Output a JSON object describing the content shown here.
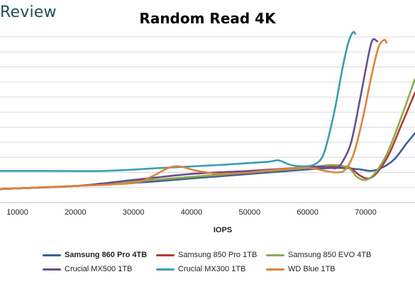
{
  "brand": "Review",
  "chart_data": {
    "type": "line",
    "title": "Random Read 4K",
    "xlabel": "IOPS",
    "ylabel": "",
    "x_ticks": [
      "10000",
      "20000",
      "30000",
      "40000",
      "50000",
      "60000",
      "70000"
    ],
    "xlim": [
      7000,
      78500
    ],
    "ylim": [
      0,
      11
    ],
    "grid": true,
    "legend_position": "bottom",
    "series": [
      {
        "name": "Samsung 860 Pro 4TB",
        "color": "#3a5fa0",
        "bold": true,
        "points": [
          [
            7000,
            0.9
          ],
          [
            20000,
            1.1
          ],
          [
            30000,
            1.3
          ],
          [
            40000,
            1.6
          ],
          [
            50000,
            1.9
          ],
          [
            60000,
            2.2
          ],
          [
            65000,
            2.3
          ],
          [
            69000,
            2.2
          ],
          [
            71000,
            2.1
          ],
          [
            73000,
            2.35
          ],
          [
            75000,
            2.9
          ],
          [
            77000,
            3.9
          ],
          [
            78500,
            4.6
          ]
        ]
      },
      {
        "name": "Samsung 850 Pro 1TB",
        "color": "#b23b35",
        "bold": false,
        "points": [
          [
            7000,
            0.9
          ],
          [
            20000,
            1.1
          ],
          [
            30000,
            1.4
          ],
          [
            40000,
            1.7
          ],
          [
            50000,
            2.0
          ],
          [
            60000,
            2.3
          ],
          [
            64000,
            2.4
          ],
          [
            67000,
            2.35
          ],
          [
            69000,
            1.8
          ],
          [
            70500,
            1.6
          ],
          [
            72000,
            2.0
          ],
          [
            74000,
            3.2
          ],
          [
            76000,
            5.0
          ],
          [
            78500,
            7.3
          ]
        ]
      },
      {
        "name": "Samsung 850 EVO 4TB",
        "color": "#8aad4c",
        "bold": false,
        "points": [
          [
            7000,
            0.9
          ],
          [
            20000,
            1.1
          ],
          [
            30000,
            1.4
          ],
          [
            40000,
            1.7
          ],
          [
            50000,
            2.0
          ],
          [
            60000,
            2.3
          ],
          [
            64000,
            2.5
          ],
          [
            67000,
            2.3
          ],
          [
            68500,
            1.7
          ],
          [
            70000,
            1.5
          ],
          [
            71500,
            1.9
          ],
          [
            73500,
            3.1
          ],
          [
            75500,
            5.0
          ],
          [
            78500,
            8.2
          ]
        ]
      },
      {
        "name": "Crucial MX500 1TB",
        "color": "#6b4e8f",
        "bold": false,
        "points": [
          [
            7000,
            0.9
          ],
          [
            20000,
            1.1
          ],
          [
            30000,
            1.5
          ],
          [
            40000,
            1.9
          ],
          [
            50000,
            2.1
          ],
          [
            58000,
            2.3
          ],
          [
            62000,
            2.4
          ],
          [
            64000,
            2.3
          ],
          [
            65000,
            2.3
          ],
          [
            66000,
            2.7
          ],
          [
            67500,
            4.0
          ],
          [
            69000,
            6.8
          ],
          [
            70500,
            9.8
          ],
          [
            71200,
            10.8
          ],
          [
            72000,
            10.7
          ]
        ]
      },
      {
        "name": "Crucial MX300 1TB",
        "color": "#3c9db3",
        "bold": false,
        "points": [
          [
            7000,
            2.1
          ],
          [
            15000,
            2.1
          ],
          [
            25000,
            2.1
          ],
          [
            35000,
            2.3
          ],
          [
            45000,
            2.5
          ],
          [
            53000,
            2.7
          ],
          [
            55000,
            2.8
          ],
          [
            57000,
            2.5
          ],
          [
            59000,
            2.4
          ],
          [
            61000,
            2.5
          ],
          [
            62500,
            3.0
          ],
          [
            63500,
            4.2
          ],
          [
            64800,
            6.4
          ],
          [
            66000,
            8.9
          ],
          [
            67000,
            10.6
          ],
          [
            67800,
            11.3
          ],
          [
            68200,
            11.2
          ]
        ]
      },
      {
        "name": "WD Blue 1TB",
        "color": "#e0833a",
        "bold": false,
        "points": [
          [
            7000,
            0.9
          ],
          [
            20000,
            1.1
          ],
          [
            30000,
            1.3
          ],
          [
            33000,
            1.7
          ],
          [
            37000,
            2.4
          ],
          [
            41000,
            2.1
          ],
          [
            45000,
            1.9
          ],
          [
            50000,
            2.0
          ],
          [
            55000,
            2.2
          ],
          [
            60000,
            2.3
          ],
          [
            63000,
            2.1
          ],
          [
            65000,
            2.0
          ],
          [
            66500,
            2.2
          ],
          [
            68000,
            3.3
          ],
          [
            69500,
            5.6
          ],
          [
            71000,
            8.4
          ],
          [
            72200,
            10.3
          ],
          [
            73200,
            10.8
          ],
          [
            73600,
            10.6
          ]
        ]
      }
    ]
  }
}
